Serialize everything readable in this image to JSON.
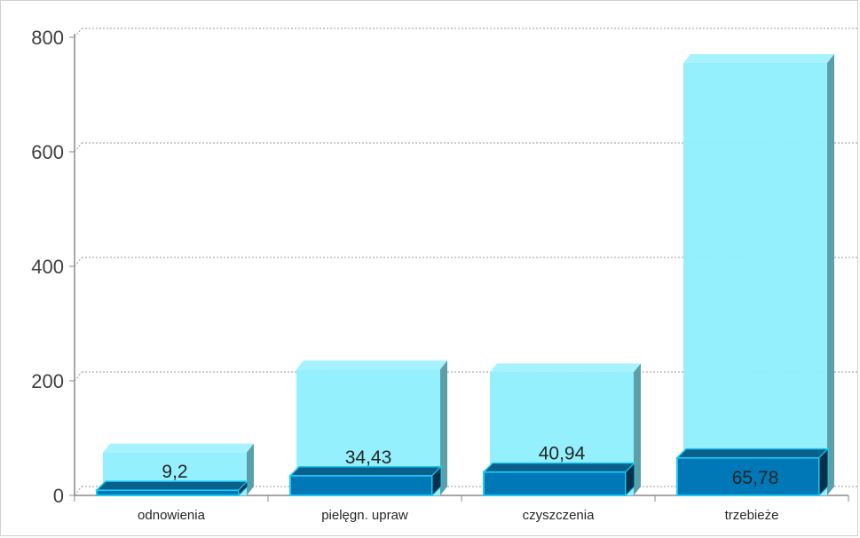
{
  "chart_data": {
    "type": "bar",
    "categories": [
      "odnowienia",
      "pielęgn. upraw",
      "czyszczenia",
      "trzebieże"
    ],
    "series": [
      {
        "values": [
          75,
          220,
          215,
          755
        ],
        "color": "#8eeffc"
      },
      {
        "values": [
          9.2,
          34.43,
          40.94,
          65.78
        ],
        "color": "#0077b6"
      }
    ],
    "data_labels": [
      "9,2",
      "34,43",
      "40,94",
      "65,78"
    ],
    "yticks": [
      "0",
      "200",
      "400",
      "600",
      "800"
    ],
    "ylim": [
      0,
      800
    ],
    "grid": true,
    "title": "",
    "xlabel": "",
    "ylabel": ""
  }
}
